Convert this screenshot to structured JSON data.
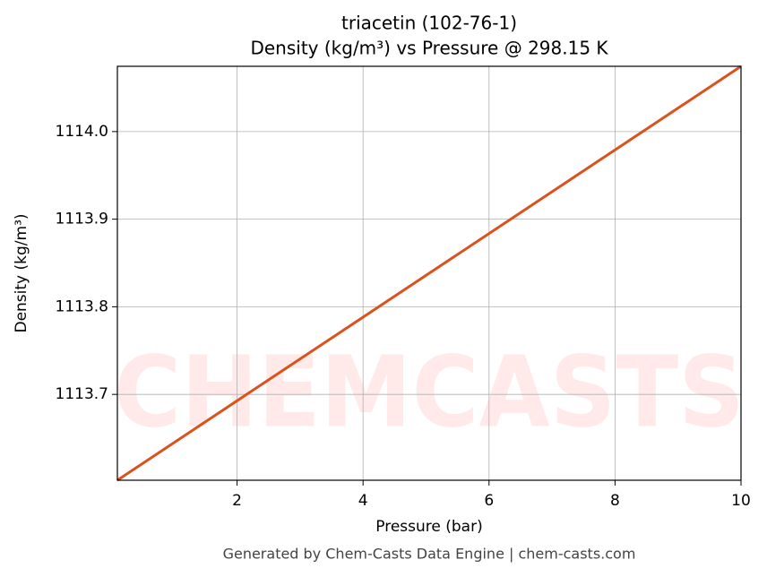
{
  "chart_data": {
    "type": "line",
    "title": "triacetin (102-76-1)",
    "subtitle": "Density (kg/m³) vs Pressure @ 298.15 K",
    "x_label": "Pressure (bar)",
    "y_label": "Density (kg/m³)",
    "watermark": "CHEMCASTS",
    "footer": "Generated by Chem-Casts Data Engine | chem-casts.com",
    "x": [
      0.1,
      10
    ],
    "series": [
      {
        "name": "Density",
        "color": "#d9531e",
        "values": [
          1113.602,
          1114.0745
        ]
      }
    ],
    "xlim": [
      0.1,
      10
    ],
    "ylim": [
      1113.602,
      1114.0745
    ],
    "xticks": [
      2,
      4,
      6,
      8,
      10
    ],
    "yticks": [
      1113.7,
      1113.8,
      1113.9,
      {
        "value": 1114.0,
        "label": "1114.0"
      }
    ],
    "grid": true
  }
}
